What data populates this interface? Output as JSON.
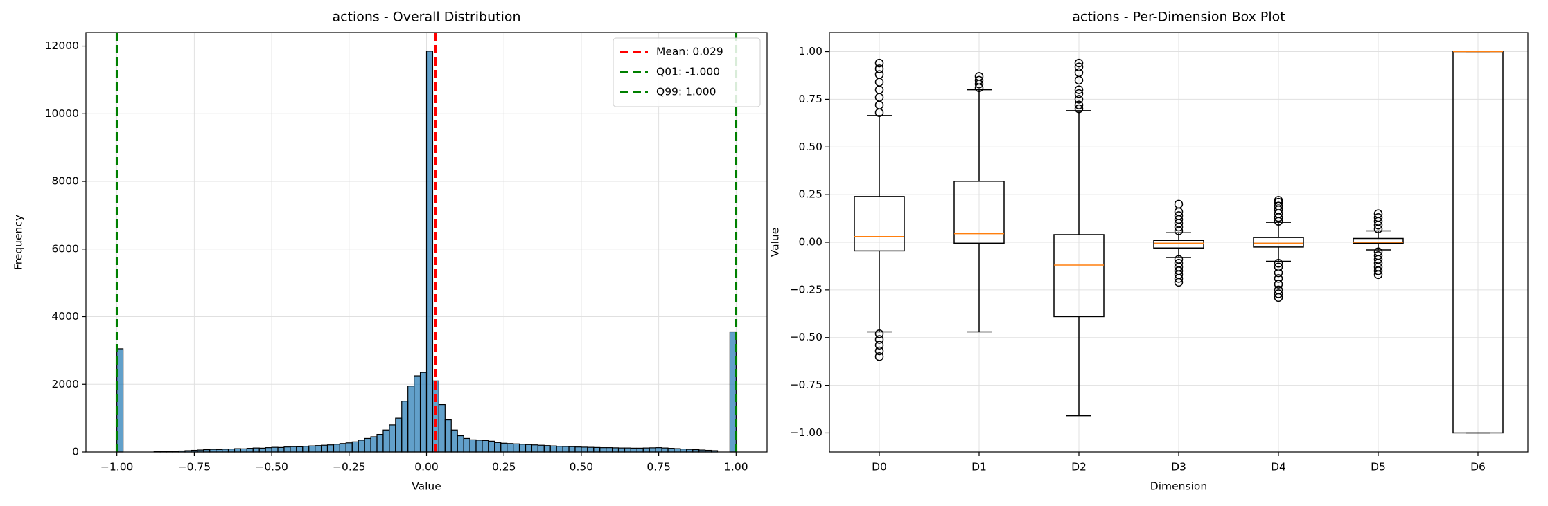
{
  "chart_data": [
    {
      "type": "histogram",
      "title": "actions - Overall Distribution",
      "xlabel": "Value",
      "ylabel": "Frequency",
      "bins": [
        -1,
        -0.98,
        -0.96,
        -0.94,
        -0.92,
        -0.9,
        -0.88,
        -0.86,
        -0.84,
        -0.82,
        -0.8,
        -0.78,
        -0.76,
        -0.74,
        -0.72,
        -0.7,
        -0.68,
        -0.66,
        -0.64,
        -0.62,
        -0.6,
        -0.58,
        -0.56,
        -0.54,
        -0.52,
        -0.5,
        -0.48,
        -0.46,
        -0.44,
        -0.42,
        -0.4,
        -0.38,
        -0.36,
        -0.34,
        -0.32,
        -0.3,
        -0.28,
        -0.26,
        -0.24,
        -0.22,
        -0.2,
        -0.18,
        -0.16,
        -0.14,
        -0.12,
        -0.1,
        -0.08,
        -0.06,
        -0.04,
        -0.02,
        0,
        0.02,
        0.04,
        0.06,
        0.08,
        0.1,
        0.12,
        0.14,
        0.16,
        0.18,
        0.2,
        0.22,
        0.24,
        0.26,
        0.28,
        0.3,
        0.32,
        0.34,
        0.36,
        0.38,
        0.4,
        0.42,
        0.44,
        0.46,
        0.48,
        0.5,
        0.52,
        0.54,
        0.56,
        0.58,
        0.6,
        0.62,
        0.64,
        0.66,
        0.68,
        0.7,
        0.72,
        0.74,
        0.76,
        0.78,
        0.8,
        0.82,
        0.84,
        0.86,
        0.88,
        0.9,
        0.92,
        0.94,
        0.96,
        0.98,
        1
      ],
      "values": [
        3050,
        0,
        0,
        0,
        0,
        0,
        15,
        10,
        20,
        25,
        30,
        40,
        50,
        60,
        70,
        80,
        75,
        85,
        90,
        100,
        95,
        110,
        120,
        115,
        130,
        140,
        135,
        150,
        160,
        155,
        170,
        180,
        190,
        200,
        210,
        230,
        250,
        270,
        300,
        350,
        400,
        450,
        520,
        650,
        800,
        1000,
        1500,
        1950,
        2250,
        2350,
        11850,
        2100,
        1400,
        950,
        650,
        480,
        400,
        360,
        350,
        340,
        320,
        280,
        260,
        250,
        240,
        230,
        220,
        210,
        200,
        190,
        180,
        170,
        165,
        160,
        150,
        145,
        140,
        135,
        130,
        130,
        125,
        120,
        120,
        115,
        115,
        120,
        125,
        130,
        120,
        110,
        100,
        90,
        80,
        70,
        60,
        50,
        40,
        0,
        0,
        3550
      ],
      "color": "#1f77b4",
      "lines": [
        {
          "name": "Mean: 0.029",
          "value": 0.029,
          "color": "#ff0000"
        },
        {
          "name": "Q01: -1.000",
          "value": -1,
          "color": "#008000"
        },
        {
          "name": "Q99: 1.000",
          "value": 1,
          "color": "#008000"
        }
      ],
      "legend": "upper right",
      "grid": true,
      "xlim": [
        -1.1,
        1.1
      ],
      "xticks": [
        {
          "value": -1,
          "label": "−1.00"
        },
        {
          "value": -0.75,
          "label": "−0.75"
        },
        {
          "value": -0.5,
          "label": "−0.50"
        },
        {
          "value": -0.25,
          "label": "−0.25"
        },
        {
          "value": 0,
          "label": "0.00"
        },
        {
          "value": 0.25,
          "label": "0.25"
        },
        {
          "value": 0.5,
          "label": "0.50"
        },
        {
          "value": 0.75,
          "label": "0.75"
        },
        {
          "value": 1,
          "label": "1.00"
        }
      ],
      "ylim": [
        0,
        12400
      ],
      "yticks": [
        0,
        2000,
        4000,
        6000,
        8000,
        10000,
        12000
      ]
    },
    {
      "type": "box",
      "title": "actions - Per-Dimension Box Plot",
      "xlabel": "Dimension",
      "ylabel": "Value",
      "categories": [
        "D0",
        "D1",
        "D2",
        "D3",
        "D4",
        "D5",
        "D6"
      ],
      "boxes": [
        {
          "whislo": -0.47,
          "q1": -0.045,
          "med": 0.03,
          "q3": 0.24,
          "whishi": 0.665,
          "fliers": [
            0.68,
            0.72,
            0.76,
            0.8,
            0.84,
            0.88,
            0.91,
            0.94,
            -0.48,
            -0.51,
            -0.54,
            -0.57,
            -0.6
          ]
        },
        {
          "whislo": -0.47,
          "q1": -0.005,
          "med": 0.045,
          "q3": 0.32,
          "whishi": 0.8,
          "fliers": [
            0.81,
            0.83,
            0.85,
            0.87
          ]
        },
        {
          "whislo": -0.91,
          "q1": -0.39,
          "med": -0.12,
          "q3": 0.04,
          "whishi": 0.69,
          "fliers": [
            0.7,
            0.72,
            0.75,
            0.78,
            0.8,
            0.85,
            0.89,
            0.92,
            0.94
          ]
        },
        {
          "whislo": -0.08,
          "q1": -0.03,
          "med": -0.005,
          "q3": 0.01,
          "whishi": 0.05,
          "fliers": [
            0.06,
            0.08,
            0.1,
            0.12,
            0.14,
            0.16,
            0.2,
            -0.09,
            -0.11,
            -0.13,
            -0.15,
            -0.17,
            -0.19,
            -0.21
          ]
        },
        {
          "whislo": -0.1,
          "q1": -0.025,
          "med": -0.005,
          "q3": 0.025,
          "whishi": 0.105,
          "fliers": [
            0.11,
            0.13,
            0.15,
            0.17,
            0.19,
            0.21,
            0.22,
            -0.11,
            -0.13,
            -0.16,
            -0.19,
            -0.22,
            -0.25,
            -0.27,
            -0.29
          ]
        },
        {
          "whislo": -0.04,
          "q1": -0.005,
          "med": 0,
          "q3": 0.02,
          "whishi": 0.06,
          "fliers": [
            0.07,
            0.09,
            0.11,
            0.13,
            0.15,
            -0.05,
            -0.07,
            -0.09,
            -0.11,
            -0.13,
            -0.15,
            -0.17
          ]
        },
        {
          "whislo": -1,
          "q1": -1,
          "med": 1,
          "q3": 1,
          "whishi": 1,
          "fliers": []
        }
      ],
      "color": "#000000",
      "median_color": "#ff7f0e",
      "grid": true,
      "ylim": [
        -1.1,
        1.1
      ],
      "yticks": [
        {
          "value": -1,
          "label": "−1.00"
        },
        {
          "value": -0.75,
          "label": "−0.75"
        },
        {
          "value": -0.5,
          "label": "−0.50"
        },
        {
          "value": -0.25,
          "label": "−0.25"
        },
        {
          "value": 0,
          "label": "0.00"
        },
        {
          "value": 0.25,
          "label": "0.25"
        },
        {
          "value": 0.5,
          "label": "0.50"
        },
        {
          "value": 0.75,
          "label": "0.75"
        },
        {
          "value": 1,
          "label": "1.00"
        }
      ]
    }
  ]
}
